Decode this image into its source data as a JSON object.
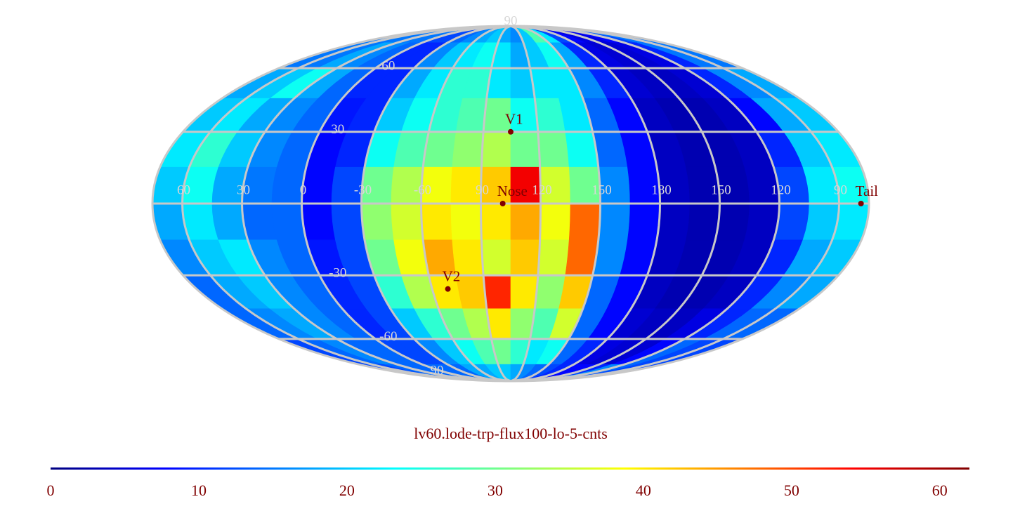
{
  "chart_data": {
    "type": "heatmap-mollweide",
    "title": "lv60.lode-trp-flux100-lo-5-cnts",
    "values": [
      [
        15,
        15,
        15,
        15,
        15,
        12,
        12,
        14,
        16,
        18,
        20,
        18,
        16,
        20,
        28,
        22,
        12,
        8,
        6,
        6,
        8,
        12,
        15,
        15
      ],
      [
        15,
        15,
        18,
        16,
        14,
        10,
        10,
        16,
        20,
        22,
        24,
        22,
        18,
        20,
        24,
        18,
        10,
        6,
        5,
        5,
        6,
        10,
        15,
        15
      ],
      [
        18,
        20,
        24,
        18,
        14,
        10,
        10,
        18,
        22,
        26,
        26,
        22,
        20,
        22,
        22,
        16,
        10,
        5,
        4,
        4,
        5,
        10,
        16,
        18
      ],
      [
        20,
        22,
        18,
        16,
        14,
        9,
        10,
        20,
        24,
        26,
        28,
        30,
        24,
        26,
        22,
        14,
        8,
        4,
        3,
        3,
        4,
        8,
        18,
        20
      ],
      [
        22,
        26,
        20,
        16,
        14,
        8,
        10,
        24,
        28,
        30,
        32,
        34,
        30,
        30,
        24,
        14,
        8,
        4,
        3,
        3,
        4,
        10,
        20,
        22
      ],
      [
        20,
        24,
        18,
        15,
        14,
        8,
        12,
        30,
        34,
        38,
        40,
        42,
        55,
        36,
        30,
        16,
        8,
        4,
        3,
        3,
        4,
        12,
        22,
        24
      ],
      [
        18,
        22,
        18,
        14,
        14,
        8,
        12,
        32,
        36,
        40,
        38,
        40,
        44,
        38,
        48,
        16,
        8,
        4,
        3,
        3,
        4,
        12,
        20,
        22
      ],
      [
        16,
        20,
        22,
        16,
        14,
        9,
        12,
        30,
        38,
        44,
        40,
        36,
        42,
        36,
        48,
        16,
        8,
        4,
        3,
        3,
        4,
        10,
        18,
        20
      ],
      [
        14,
        18,
        20,
        16,
        14,
        10,
        12,
        26,
        34,
        40,
        42,
        52,
        40,
        32,
        42,
        14,
        8,
        4,
        3,
        3,
        4,
        10,
        16,
        18
      ],
      [
        14,
        16,
        18,
        16,
        14,
        10,
        12,
        20,
        26,
        30,
        34,
        40,
        32,
        28,
        36,
        14,
        8,
        5,
        4,
        4,
        6,
        10,
        14,
        14
      ],
      [
        12,
        14,
        16,
        14,
        14,
        12,
        12,
        16,
        20,
        24,
        28,
        30,
        26,
        22,
        24,
        14,
        10,
        6,
        5,
        5,
        8,
        14,
        12,
        12
      ],
      [
        12,
        12,
        14,
        14,
        14,
        14,
        14,
        14,
        18,
        18,
        20,
        20,
        18,
        16,
        14,
        12,
        10,
        8,
        8,
        10,
        16,
        14,
        12,
        12
      ]
    ],
    "lon_labels": [
      60,
      30,
      0,
      -30,
      -60,
      90,
      120,
      150,
      180,
      150,
      120,
      90
    ],
    "lat_labels": [
      90,
      60,
      30,
      -30,
      -60,
      90
    ],
    "markers": [
      {
        "label": "V1",
        "lon": 0,
        "lat": 30
      },
      {
        "label": "Nose",
        "lon": -4,
        "lat": 0
      },
      {
        "label": "V2",
        "lon": -36,
        "lat": -36
      },
      {
        "label": "Tail",
        "lon": 176,
        "lat": 0
      }
    ],
    "zlim": [
      0,
      62
    ],
    "zticks": [
      0,
      10,
      20,
      30,
      40,
      50,
      60
    ],
    "grid": true
  }
}
